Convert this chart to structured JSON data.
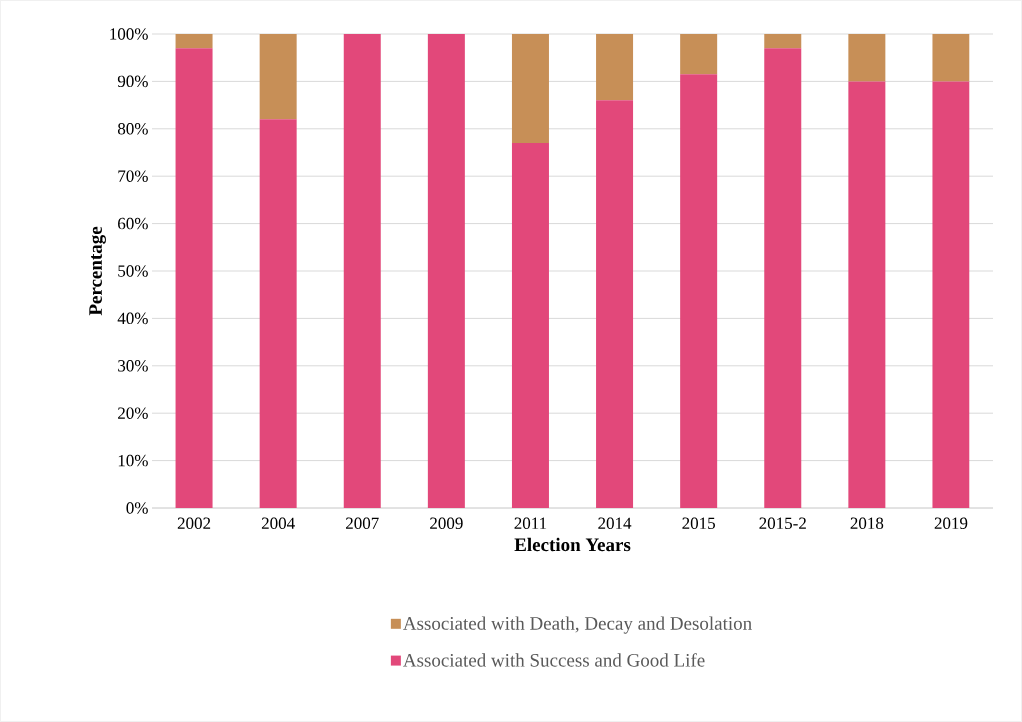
{
  "chart_data": {
    "type": "bar",
    "stacked": true,
    "xlabel": "Election Years",
    "ylabel": "Percentage",
    "categories": [
      "2002",
      "2004",
      "2007",
      "2009",
      "2011",
      "2014",
      "2015",
      "2015-2",
      "2018",
      "2019"
    ],
    "series": [
      {
        "name": "Associated with Success and Good Life",
        "color": "#e2487a",
        "values": [
          97,
          82,
          100,
          100,
          77,
          86,
          91.5,
          97,
          90,
          90
        ]
      },
      {
        "name": "Associated with Death, Decay and Desolation",
        "color": "#c78f57",
        "values": [
          3,
          18,
          0,
          0,
          23,
          14,
          8.5,
          3,
          10,
          10
        ]
      }
    ],
    "ylim": [
      0,
      100
    ],
    "yticks": [
      {
        "value": 0,
        "label": "0%"
      },
      {
        "value": 10,
        "label": "10%"
      },
      {
        "value": 20,
        "label": "20%"
      },
      {
        "value": 30,
        "label": "30%"
      },
      {
        "value": 40,
        "label": "40%"
      },
      {
        "value": 50,
        "label": "50%"
      },
      {
        "value": 60,
        "label": "60%"
      },
      {
        "value": 70,
        "label": "70%"
      },
      {
        "value": 80,
        "label": "80%"
      },
      {
        "value": 90,
        "label": "90%"
      },
      {
        "value": 100,
        "label": "100%"
      }
    ],
    "grid": "y",
    "legend": "bottom"
  }
}
